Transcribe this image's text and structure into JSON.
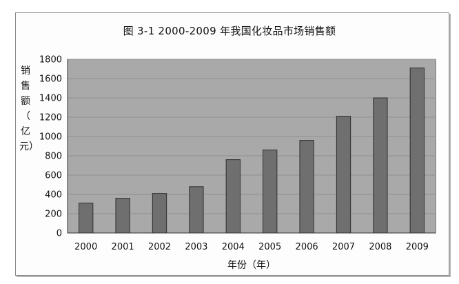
{
  "chart_data": {
    "type": "bar",
    "title": "图 3-1  2000-2009 年我国化妆品市场销售额",
    "ylabel": "销售额（亿元）",
    "ylabel_chars": [
      "销",
      "售",
      "额",
      "（",
      "亿",
      "元）"
    ],
    "xlabel": "年份（年）",
    "categories": [
      "2000",
      "2001",
      "2002",
      "2003",
      "2004",
      "2005",
      "2006",
      "2007",
      "2008",
      "2009"
    ],
    "values": [
      310,
      360,
      410,
      480,
      760,
      860,
      960,
      1210,
      1400,
      1710
    ],
    "ylim": [
      0,
      1800
    ],
    "yticks": [
      0,
      200,
      400,
      600,
      800,
      1000,
      1200,
      1400,
      1600,
      1800
    ],
    "grid": true,
    "legend": "none",
    "colors": {
      "plot_bg": "#a9a9a9",
      "bar": "#6f6f6f",
      "bar_edge": "#2e2e2e",
      "grid": "#8e8e8e"
    }
  }
}
